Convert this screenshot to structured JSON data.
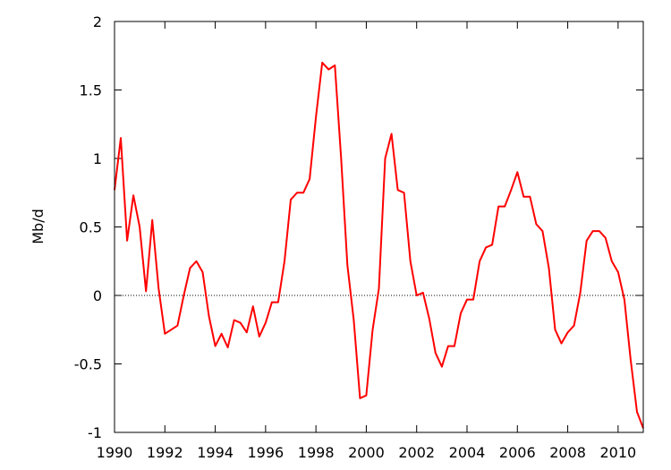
{
  "chart_data": {
    "type": "line",
    "title": "",
    "xlabel": "",
    "ylabel": "Mb/d",
    "xlim": [
      1990,
      2011
    ],
    "ylim": [
      -1,
      2
    ],
    "grid": false,
    "legend": "none",
    "x_ticks": [
      "1990",
      "1992",
      "1994",
      "1996",
      "1998",
      "2000",
      "2002",
      "2004",
      "2006",
      "2008",
      "2010"
    ],
    "y_ticks": [
      "2",
      "1.5",
      "1",
      "0.5",
      "0",
      "-0.5",
      "-1"
    ],
    "zero_line": {
      "y": 0,
      "style": "dotted",
      "color": "#000000"
    },
    "series": [
      {
        "color": "#ff0000",
        "points": [
          [
            1990.0,
            0.77
          ],
          [
            1990.25,
            1.15
          ],
          [
            1990.5,
            0.4
          ],
          [
            1990.75,
            0.73
          ],
          [
            1991.0,
            0.5
          ],
          [
            1991.25,
            0.03
          ],
          [
            1991.5,
            0.55
          ],
          [
            1991.75,
            0.05
          ],
          [
            1992.0,
            -0.28
          ],
          [
            1992.25,
            -0.25
          ],
          [
            1992.5,
            -0.22
          ],
          [
            1992.75,
            0.0
          ],
          [
            1993.0,
            0.2
          ],
          [
            1993.25,
            0.25
          ],
          [
            1993.5,
            0.17
          ],
          [
            1993.75,
            -0.15
          ],
          [
            1994.0,
            -0.37
          ],
          [
            1994.25,
            -0.28
          ],
          [
            1994.5,
            -0.38
          ],
          [
            1994.75,
            -0.18
          ],
          [
            1995.0,
            -0.2
          ],
          [
            1995.25,
            -0.27
          ],
          [
            1995.5,
            -0.08
          ],
          [
            1995.75,
            -0.3
          ],
          [
            1996.0,
            -0.2
          ],
          [
            1996.25,
            -0.05
          ],
          [
            1996.5,
            -0.05
          ],
          [
            1996.75,
            0.25
          ],
          [
            1997.0,
            0.7
          ],
          [
            1997.25,
            0.75
          ],
          [
            1997.5,
            0.75
          ],
          [
            1997.75,
            0.85
          ],
          [
            1998.0,
            1.3
          ],
          [
            1998.25,
            1.7
          ],
          [
            1998.5,
            1.65
          ],
          [
            1998.75,
            1.68
          ],
          [
            1999.0,
            1.0
          ],
          [
            1999.25,
            0.22
          ],
          [
            1999.5,
            -0.18
          ],
          [
            1999.75,
            -0.75
          ],
          [
            2000.0,
            -0.73
          ],
          [
            2000.25,
            -0.25
          ],
          [
            2000.5,
            0.05
          ],
          [
            2000.75,
            1.0
          ],
          [
            2001.0,
            1.18
          ],
          [
            2001.25,
            0.77
          ],
          [
            2001.5,
            0.75
          ],
          [
            2001.75,
            0.25
          ],
          [
            2002.0,
            0.0
          ],
          [
            2002.25,
            0.02
          ],
          [
            2002.5,
            -0.17
          ],
          [
            2002.75,
            -0.42
          ],
          [
            2003.0,
            -0.52
          ],
          [
            2003.25,
            -0.37
          ],
          [
            2003.5,
            -0.37
          ],
          [
            2003.75,
            -0.13
          ],
          [
            2004.0,
            -0.03
          ],
          [
            2004.25,
            -0.03
          ],
          [
            2004.5,
            0.25
          ],
          [
            2004.75,
            0.35
          ],
          [
            2005.0,
            0.37
          ],
          [
            2005.25,
            0.65
          ],
          [
            2005.5,
            0.65
          ],
          [
            2005.75,
            0.77
          ],
          [
            2006.0,
            0.9
          ],
          [
            2006.25,
            0.72
          ],
          [
            2006.5,
            0.72
          ],
          [
            2006.75,
            0.52
          ],
          [
            2007.0,
            0.47
          ],
          [
            2007.25,
            0.2
          ],
          [
            2007.5,
            -0.25
          ],
          [
            2007.75,
            -0.35
          ],
          [
            2008.0,
            -0.27
          ],
          [
            2008.25,
            -0.22
          ],
          [
            2008.5,
            0.02
          ],
          [
            2008.75,
            0.4
          ],
          [
            2009.0,
            0.47
          ],
          [
            2009.25,
            0.47
          ],
          [
            2009.5,
            0.42
          ],
          [
            2009.75,
            0.25
          ],
          [
            2010.0,
            0.17
          ],
          [
            2010.25,
            -0.03
          ],
          [
            2010.5,
            -0.47
          ],
          [
            2010.75,
            -0.85
          ],
          [
            2011.0,
            -0.97
          ]
        ]
      }
    ]
  }
}
